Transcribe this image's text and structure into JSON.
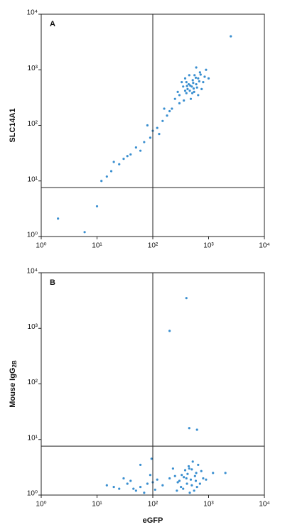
{
  "chart_data": [
    {
      "type": "scatter",
      "panel_label": "A",
      "y_label": "SLC14A1",
      "color": "#3a8fd0",
      "log_x": true,
      "log_y": true,
      "xlim": [
        1,
        10000
      ],
      "ylim": [
        1,
        10000
      ],
      "xticks": [
        {
          "value": 1,
          "label": "10⁰"
        },
        {
          "value": 10,
          "label": "10¹"
        },
        {
          "value": 100,
          "label": "10²"
        },
        {
          "value": 1000,
          "label": "10³"
        },
        {
          "value": 10000,
          "label": "10⁴"
        }
      ],
      "yticks": [
        {
          "value": 1,
          "label": "10⁰"
        },
        {
          "value": 10,
          "label": "10¹"
        },
        {
          "value": 100,
          "label": "10²"
        },
        {
          "value": 1000,
          "label": "10³"
        },
        {
          "value": 10000,
          "label": "10⁴"
        }
      ],
      "quadrant": {
        "x": 100,
        "y": 7.6
      },
      "x": [
        500,
        400,
        650,
        300,
        550,
        700,
        450,
        350,
        600,
        800,
        250,
        420,
        520,
        380,
        900,
        480,
        620,
        330,
        560,
        750,
        280,
        440,
        680,
        510,
        360,
        590,
        470,
        720,
        300,
        400,
        850,
        530,
        650,
        380,
        460,
        1000,
        220,
        600,
        540,
        410,
        200,
        150,
        120,
        90,
        70,
        50,
        40,
        30,
        25,
        18,
        15,
        12,
        180,
        100,
        60,
        35,
        130,
        80,
        20,
        160,
        2,
        6,
        10,
        2500
      ],
      "y": [
        500,
        600,
        700,
        350,
        400,
        900,
        800,
        500,
        550,
        600,
        300,
        450,
        650,
        420,
        1000,
        300,
        480,
        600,
        800,
        450,
        400,
        550,
        620,
        380,
        280,
        720,
        520,
        820,
        250,
        380,
        750,
        580,
        350,
        700,
        420,
        700,
        200,
        1100,
        460,
        510,
        180,
        120,
        90,
        60,
        50,
        40,
        30,
        25,
        20,
        15,
        12,
        10,
        150,
        80,
        35,
        28,
        70,
        100,
        22,
        200,
        2.1,
        1.2,
        3.5,
        4000
      ]
    },
    {
      "type": "scatter",
      "panel_label": "B",
      "y_label": "Mouse IgG",
      "y_label_subscript": "2B",
      "x_label": "eGFP",
      "color": "#3a8fd0",
      "log_x": true,
      "log_y": true,
      "xlim": [
        1,
        10000
      ],
      "ylim": [
        1,
        10000
      ],
      "xticks": [
        {
          "value": 1,
          "label": "10⁰"
        },
        {
          "value": 10,
          "label": "10¹"
        },
        {
          "value": 100,
          "label": "10²"
        },
        {
          "value": 1000,
          "label": "10³"
        },
        {
          "value": 10000,
          "label": "10⁴"
        }
      ],
      "yticks": [
        {
          "value": 1,
          "label": "10⁰"
        },
        {
          "value": 10,
          "label": "10¹"
        },
        {
          "value": 100,
          "label": "10²"
        },
        {
          "value": 1000,
          "label": "10³"
        },
        {
          "value": 10000,
          "label": "10⁴"
        }
      ],
      "quadrant": {
        "x": 100,
        "y": 7.6
      },
      "x": [
        400,
        500,
        300,
        600,
        350,
        450,
        700,
        250,
        550,
        380,
        480,
        650,
        320,
        420,
        800,
        280,
        520,
        460,
        360,
        590,
        230,
        740,
        410,
        500,
        330,
        620,
        440,
        900,
        270,
        570,
        1200,
        200,
        15,
        25,
        40,
        60,
        80,
        30,
        50,
        100,
        120,
        70,
        20,
        35,
        90,
        45,
        150,
        110,
        400,
        200,
        450,
        620,
        95,
        60,
        2000
      ],
      "y": [
        2,
        1.5,
        1.8,
        2.5,
        1.3,
        3,
        1.6,
        2.2,
        1.2,
        2.8,
        1.9,
        3.5,
        1.4,
        2.4,
        2,
        1.7,
        4,
        1.1,
        2.1,
        1.8,
        3,
        2.7,
        1.6,
        2.9,
        2.3,
        1.4,
        3.3,
        1.9,
        1.2,
        2.2,
        2.5,
        2,
        1.5,
        1.3,
        1.8,
        1.4,
        1.6,
        2,
        1.2,
        1.7,
        1.9,
        1.1,
        1.4,
        1.6,
        2.3,
        1.3,
        1.5,
        1.25,
        3500,
        900,
        16,
        15,
        4.5,
        3.5,
        2.5
      ]
    }
  ]
}
